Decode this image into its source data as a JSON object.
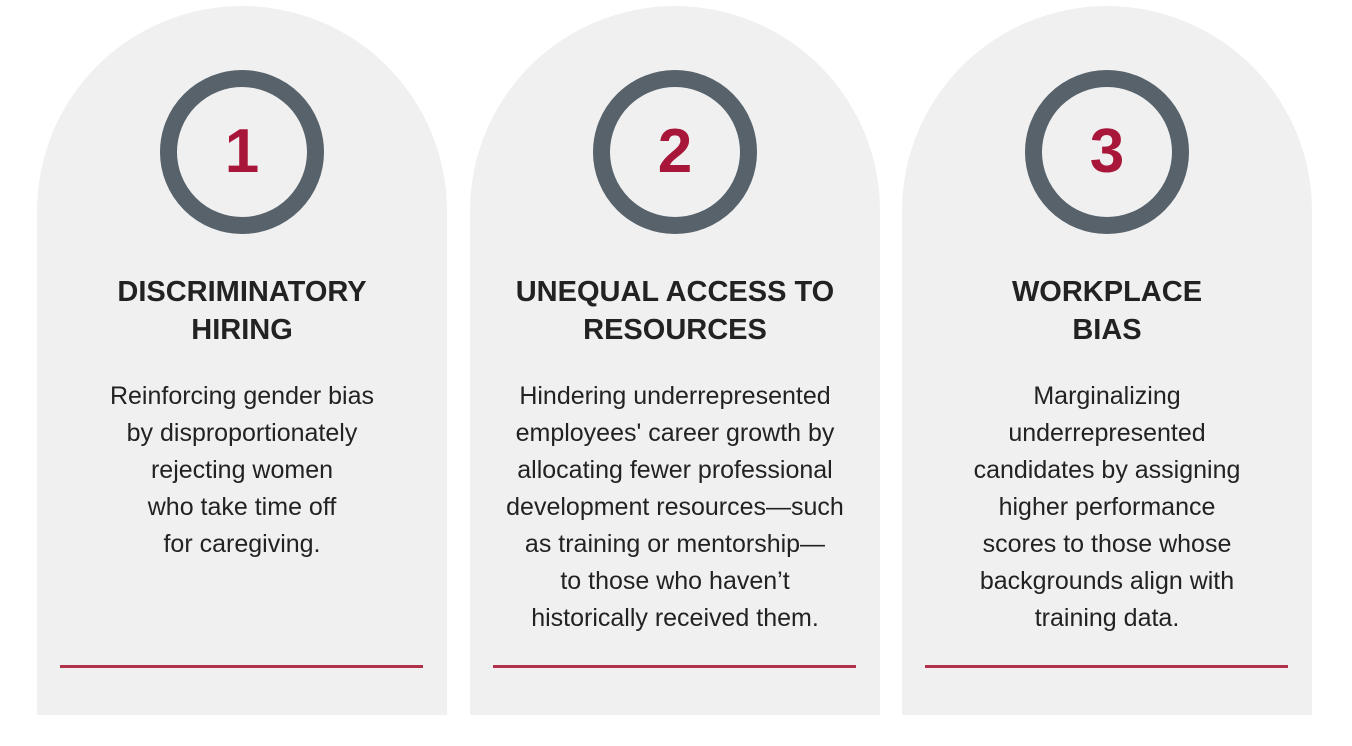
{
  "colors": {
    "card_background": "#f0f0f0",
    "ring": "#57626b",
    "number": "#a8173a",
    "text": "#222222",
    "rule": "#b03148"
  },
  "cards": [
    {
      "number": "1",
      "title_lines": [
        "DISCRIMINATORY",
        "HIRING"
      ],
      "body_lines": [
        "Reinforcing gender bias",
        "by disproportionately",
        "rejecting women",
        "who take time off",
        "for caregiving."
      ]
    },
    {
      "number": "2",
      "title_lines": [
        "UNEQUAL ACCESS TO",
        "RESOURCES"
      ],
      "body_lines": [
        "Hindering underrepresented",
        "employees' career growth by",
        "allocating fewer professional",
        "development resources—such",
        "as training or mentorship—",
        "to those who haven’t",
        "historically received them."
      ]
    },
    {
      "number": "3",
      "title_lines": [
        "WORKPLACE",
        "BIAS"
      ],
      "body_lines": [
        "Marginalizing",
        "underrepresented",
        "candidates by assigning",
        "higher performance",
        "scores to those whose",
        "backgrounds align with",
        "training data."
      ]
    }
  ]
}
